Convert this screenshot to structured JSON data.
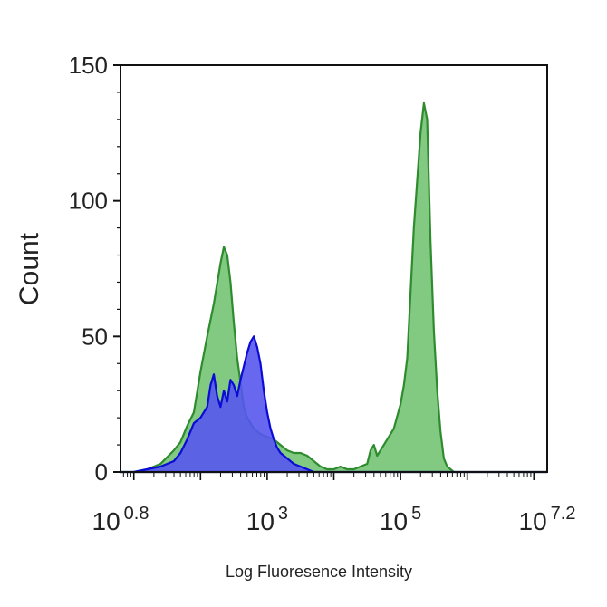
{
  "chart_data": {
    "type": "area",
    "title": "",
    "xlabel": "Log Fluoresence Intensity",
    "ylabel": "Count",
    "x_scale": "log10",
    "xlim": [
      0.8,
      7.2
    ],
    "ylim": [
      0,
      150
    ],
    "x_ticks": [
      {
        "exponent": 0.8,
        "base": "10",
        "sup": "0.8"
      },
      {
        "exponent": 3,
        "base": "10",
        "sup": "3"
      },
      {
        "exponent": 5,
        "base": "10",
        "sup": "5"
      },
      {
        "exponent": 7.2,
        "base": "10",
        "sup": "7.2"
      }
    ],
    "y_ticks": [
      0,
      50,
      100,
      150
    ],
    "grid": false,
    "series": [
      {
        "color": "#2e8b2e",
        "fill": "#6cbf6c",
        "x_log10": [
          0.8,
          1.0,
          1.2,
          1.4,
          1.6,
          1.7,
          1.8,
          1.9,
          2.0,
          2.1,
          2.2,
          2.3,
          2.35,
          2.4,
          2.45,
          2.5,
          2.55,
          2.6,
          2.65,
          2.7,
          2.8,
          2.9,
          3.0,
          3.1,
          3.2,
          3.3,
          3.4,
          3.5,
          3.6,
          3.7,
          3.8,
          3.9,
          4.0,
          4.1,
          4.2,
          4.3,
          4.4,
          4.5,
          4.55,
          4.6,
          4.65,
          4.7,
          4.8,
          4.9,
          5.0,
          5.05,
          5.1,
          5.2,
          5.3,
          5.35,
          5.4,
          5.45,
          5.5,
          5.55,
          5.6,
          5.65,
          5.7,
          5.8,
          5.9,
          6.0,
          6.2,
          6.5,
          7.2
        ],
        "counts": [
          0,
          0,
          1,
          3,
          8,
          11,
          17,
          22,
          37,
          50,
          62,
          77,
          83,
          80,
          70,
          55,
          42,
          33,
          24,
          20,
          16,
          14,
          13,
          12,
          10,
          8,
          7,
          7,
          6,
          4,
          2,
          1,
          1,
          2,
          1,
          1,
          2,
          3,
          8,
          10,
          6,
          8,
          12,
          16,
          25,
          32,
          42,
          90,
          125,
          136,
          130,
          85,
          52,
          30,
          15,
          5,
          2,
          0,
          0,
          0,
          0,
          0,
          0
        ]
      },
      {
        "color": "#0b0bd6",
        "fill": "#5656ee",
        "x_log10": [
          0.8,
          1.0,
          1.2,
          1.4,
          1.6,
          1.7,
          1.8,
          1.9,
          2.0,
          2.1,
          2.15,
          2.2,
          2.25,
          2.3,
          2.35,
          2.4,
          2.45,
          2.5,
          2.55,
          2.6,
          2.7,
          2.75,
          2.8,
          2.85,
          2.9,
          2.95,
          3.0,
          3.05,
          3.1,
          3.15,
          3.2,
          3.3,
          3.4,
          3.5,
          3.6,
          3.7,
          3.8,
          4.0,
          4.5,
          7.2
        ],
        "counts": [
          0,
          0,
          1,
          2,
          4,
          7,
          12,
          18,
          20,
          24,
          32,
          36,
          28,
          24,
          30,
          26,
          34,
          32,
          28,
          34,
          44,
          48,
          50,
          46,
          40,
          30,
          22,
          16,
          12,
          9,
          7,
          5,
          3,
          2,
          1,
          0,
          0,
          0,
          0,
          0
        ]
      }
    ]
  }
}
